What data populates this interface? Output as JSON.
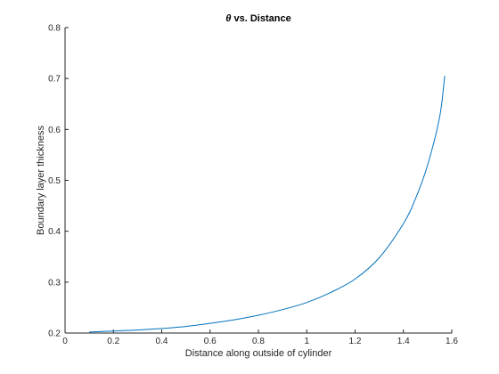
{
  "chart_data": {
    "type": "line",
    "title_symbol": "θ",
    "title_rest": " vs. Distance",
    "xlabel": "Distance along outside of cylinder",
    "ylabel": "Boundary layer thickness",
    "xlim": [
      0,
      1.6
    ],
    "ylim": [
      0.2,
      0.8
    ],
    "x_ticks": [
      "0",
      "0.2",
      "0.4",
      "0.6",
      "0.8",
      "1",
      "1.2",
      "1.4",
      "1.6"
    ],
    "y_ticks": [
      "0.2",
      "0.3",
      "0.4",
      "0.5",
      "0.6",
      "0.7",
      "0.8"
    ],
    "grid": false,
    "legend": "none",
    "series": [
      {
        "color": "#0072BD",
        "x": [
          0.1,
          0.2,
          0.3,
          0.4,
          0.5,
          0.6,
          0.7,
          0.8,
          0.9,
          1.0,
          1.1,
          1.2,
          1.3,
          1.4,
          1.45,
          1.5,
          1.55,
          1.5708
        ],
        "y": [
          0.202,
          0.204,
          0.206,
          0.209,
          0.213,
          0.219,
          0.226,
          0.235,
          0.246,
          0.26,
          0.28,
          0.306,
          0.348,
          0.415,
          0.464,
          0.53,
          0.625,
          0.705
        ]
      }
    ]
  }
}
